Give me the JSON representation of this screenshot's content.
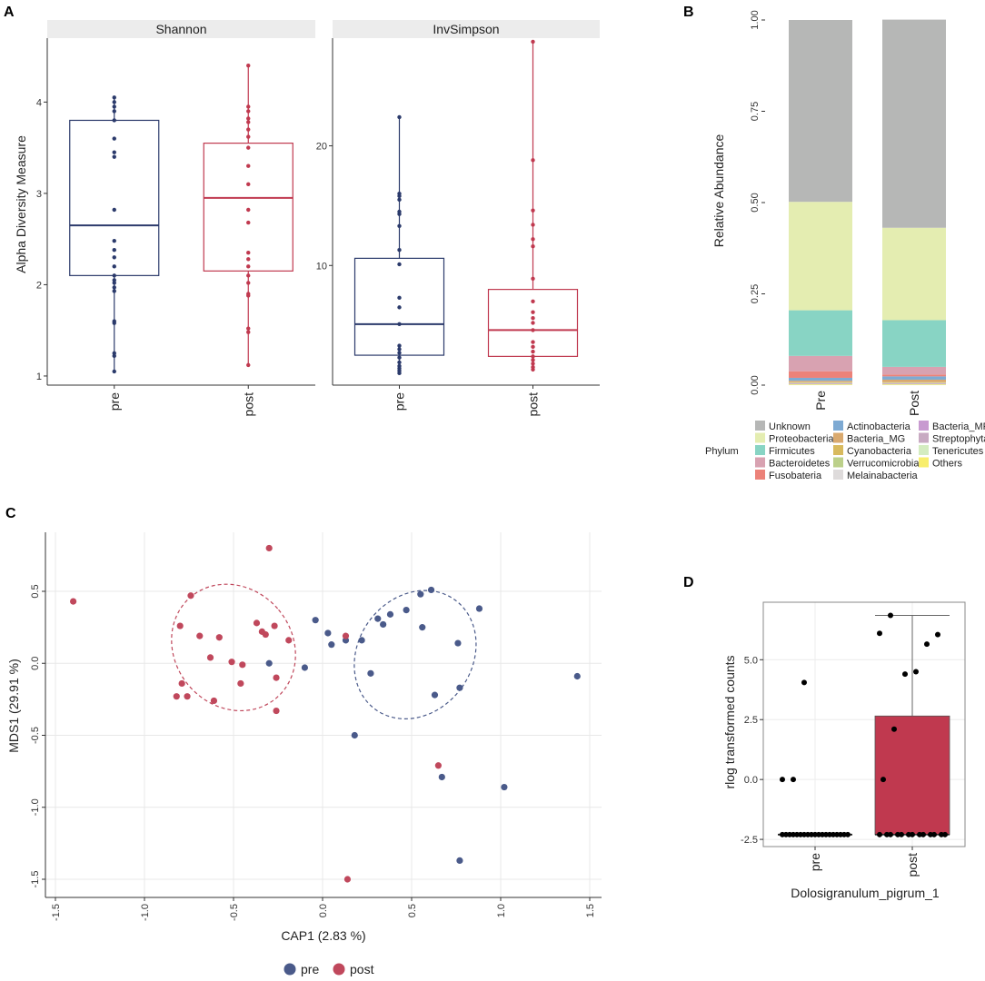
{
  "colors": {
    "pre": "#2b3a6b",
    "post": "#c0394f",
    "pre_point": "#4a5a8a",
    "post_point": "#c0485c",
    "unknown": "#b6b7b6",
    "proteobacteria": "#e4edb1",
    "firmicutes": "#88d4c4",
    "bacteroidetes": "#d8a2b1",
    "fusobacteria": "#ec8279",
    "actinobacteria": "#7eaad3",
    "bacteria_mg": "#d9a96e",
    "cyanobacteria": "#d8ba5e",
    "verrucomicrobia": "#bcd08a",
    "melainabacteria": "#dedbdb",
    "bacteria_mf": "#c89ad0",
    "streptophyta": "#c8aac2",
    "tenericutes": "#d4ecc0",
    "others": "#f8ee6c"
  },
  "panel_letters": {
    "a": "A",
    "b": "B",
    "c": "C",
    "d": "D"
  },
  "chart_data": [
    {
      "panel": "A-left",
      "type": "box",
      "strip_title": "Shannon",
      "ylabel": "Alpha Diversity Measure",
      "xlabel": "",
      "ylim": [
        0.9,
        4.7
      ],
      "yticks": [
        1,
        2,
        3,
        4
      ],
      "categories": [
        "pre",
        "post"
      ],
      "boxes": [
        {
          "name": "pre",
          "q1": 2.1,
          "median": 2.65,
          "q3": 3.8,
          "lo": 1.05,
          "hi": 4.05,
          "points": [
            1.05,
            1.22,
            1.25,
            1.58,
            1.6,
            1.93,
            1.97,
            2.02,
            2.05,
            2.1,
            2.2,
            2.3,
            2.38,
            2.48,
            2.82,
            3.4,
            3.45,
            3.6,
            3.8,
            3.9,
            3.95,
            4.0,
            4.05
          ]
        },
        {
          "name": "post",
          "q1": 2.15,
          "median": 2.95,
          "q3": 3.55,
          "lo": 1.12,
          "hi": 4.4,
          "points": [
            1.12,
            1.48,
            1.52,
            1.88,
            1.9,
            2.02,
            2.1,
            2.2,
            2.28,
            2.35,
            2.68,
            2.82,
            3.1,
            3.3,
            3.5,
            3.62,
            3.7,
            3.78,
            3.82,
            3.9,
            3.95,
            4.4
          ]
        }
      ]
    },
    {
      "panel": "A-right",
      "type": "box",
      "strip_title": "InvSimpson",
      "ylabel": "",
      "xlabel": "",
      "ylim": [
        0,
        29
      ],
      "yticks": [
        10,
        20
      ],
      "categories": [
        "pre",
        "post"
      ],
      "boxes": [
        {
          "name": "pre",
          "q1": 2.5,
          "median": 5.1,
          "q3": 10.6,
          "lo": 1.0,
          "hi": 22.4,
          "points": [
            1.0,
            1.2,
            1.4,
            1.6,
            1.9,
            2.3,
            2.7,
            3.0,
            3.3,
            5.1,
            6.5,
            7.3,
            10.1,
            11.3,
            13.3,
            14.3,
            14.5,
            15.5,
            15.8,
            16.0,
            22.4
          ]
        },
        {
          "name": "post",
          "q1": 2.4,
          "median": 4.6,
          "q3": 8.0,
          "lo": 1.3,
          "hi": 28.7,
          "points": [
            1.3,
            1.5,
            1.8,
            2.1,
            2.4,
            2.8,
            3.2,
            3.6,
            4.6,
            5.2,
            5.6,
            6.1,
            7.0,
            8.9,
            11.6,
            12.2,
            13.4,
            14.6,
            18.8,
            28.7
          ]
        }
      ]
    },
    {
      "panel": "B",
      "type": "stacked-bar",
      "title": "",
      "ylabel": "Relative Abundance",
      "xlabel": "",
      "ylim": [
        0,
        1
      ],
      "yticks": [
        "0.00",
        "0.25",
        "0.50",
        "0.75",
        "1.00"
      ],
      "categories": [
        "Pre",
        "Post"
      ],
      "legend_title": "Phylum",
      "legend_position": "bottom",
      "legend": [
        "Unknown",
        "Proteobacteria",
        "Firmicutes",
        "Bacteroidetes",
        "Fusobateria",
        "Actinobacteria",
        "Bacteria_MG",
        "Cyanobacteria",
        "Verrucomicrobia",
        "Melainabacteria",
        "Bacteria_MF",
        "Streptophyta",
        "Tenericutes",
        "Others"
      ],
      "series": [
        {
          "name": "Others",
          "color_key": "others",
          "values": [
            0.002,
            0.002
          ]
        },
        {
          "name": "Tenericutes",
          "color_key": "tenericutes",
          "values": [
            0.001,
            0.001
          ]
        },
        {
          "name": "Streptophyta",
          "color_key": "streptophyta",
          "values": [
            0.001,
            0.001
          ]
        },
        {
          "name": "Bacteria_MF",
          "color_key": "bacteria_mf",
          "values": [
            0.001,
            0.001
          ]
        },
        {
          "name": "Melainabacteria",
          "color_key": "melainabacteria",
          "values": [
            0.001,
            0.001
          ]
        },
        {
          "name": "Verrucomicrobia",
          "color_key": "verrucomicrobia",
          "values": [
            0.001,
            0.001
          ]
        },
        {
          "name": "Cyanobacteria",
          "color_key": "cyanobacteria",
          "values": [
            0.001,
            0.001
          ]
        },
        {
          "name": "Bacteria_MG",
          "color_key": "bacteria_mg",
          "values": [
            0.004,
            0.007
          ]
        },
        {
          "name": "Actinobacteria",
          "color_key": "actinobacteria",
          "values": [
            0.008,
            0.009
          ]
        },
        {
          "name": "Fusobateria",
          "color_key": "fusobacteria",
          "values": [
            0.018,
            0.005
          ]
        },
        {
          "name": "Bacteroidetes",
          "color_key": "bacteroidetes",
          "values": [
            0.042,
            0.021
          ]
        },
        {
          "name": "Firmicutes",
          "color_key": "firmicutes",
          "values": [
            0.125,
            0.128
          ]
        },
        {
          "name": "Proteobacteria",
          "color_key": "proteobacteria",
          "values": [
            0.297,
            0.253
          ]
        },
        {
          "name": "Unknown",
          "color_key": "unknown",
          "values": [
            0.498,
            0.57
          ]
        }
      ]
    },
    {
      "panel": "C",
      "type": "scatter",
      "title": "",
      "xlabel": "CAP1 (2.83 %)",
      "ylabel": "MDS1 (29.91 %)",
      "xlim": [
        -1.55,
        1.55
      ],
      "ylim": [
        -1.6,
        0.9
      ],
      "xticks": [
        "-1.5",
        "-1.0",
        "-0.5",
        "0.0",
        "0.5",
        "1.0",
        "1.5"
      ],
      "yticks": [
        "-1.5",
        "-1.0",
        "-0.5",
        "0.0",
        "0.5"
      ],
      "legend": [
        "pre",
        "post"
      ],
      "legend_position": "bottom",
      "series": [
        {
          "name": "pre",
          "color_key": "pre_point",
          "points": [
            [
              -0.3,
              0.0
            ],
            [
              -0.1,
              -0.03
            ],
            [
              -0.04,
              0.3
            ],
            [
              0.03,
              0.21
            ],
            [
              0.05,
              0.13
            ],
            [
              0.13,
              0.16
            ],
            [
              0.18,
              -0.5
            ],
            [
              0.22,
              0.16
            ],
            [
              0.27,
              -0.07
            ],
            [
              0.31,
              0.31
            ],
            [
              0.34,
              0.27
            ],
            [
              0.38,
              0.34
            ],
            [
              0.47,
              0.37
            ],
            [
              0.55,
              0.48
            ],
            [
              0.56,
              0.25
            ],
            [
              0.61,
              0.51
            ],
            [
              0.63,
              -0.22
            ],
            [
              0.67,
              -0.79
            ],
            [
              0.76,
              0.14
            ],
            [
              0.77,
              -0.17
            ],
            [
              0.77,
              -1.37
            ],
            [
              0.88,
              0.38
            ],
            [
              1.02,
              -0.86
            ],
            [
              1.43,
              -0.09
            ]
          ]
        },
        {
          "name": "post",
          "color_key": "post_point",
          "points": [
            [
              -1.4,
              0.43
            ],
            [
              -0.82,
              -0.23
            ],
            [
              -0.8,
              0.26
            ],
            [
              -0.79,
              -0.14
            ],
            [
              -0.76,
              -0.23
            ],
            [
              -0.74,
              0.47
            ],
            [
              -0.69,
              0.19
            ],
            [
              -0.63,
              0.04
            ],
            [
              -0.61,
              -0.26
            ],
            [
              -0.58,
              0.18
            ],
            [
              -0.51,
              0.01
            ],
            [
              -0.46,
              -0.14
            ],
            [
              -0.45,
              -0.01
            ],
            [
              -0.37,
              0.28
            ],
            [
              -0.34,
              0.22
            ],
            [
              -0.32,
              0.2
            ],
            [
              -0.3,
              0.8
            ],
            [
              -0.27,
              0.26
            ],
            [
              -0.26,
              -0.1
            ],
            [
              -0.26,
              -0.33
            ],
            [
              -0.19,
              0.16
            ],
            [
              0.13,
              0.19
            ],
            [
              0.14,
              -1.5
            ],
            [
              0.65,
              -0.71
            ]
          ]
        }
      ],
      "ellipses": [
        {
          "group": "post",
          "cx": -0.5,
          "cy": 0.11,
          "rx": 0.33,
          "ry": 0.46,
          "angle_deg": -40
        },
        {
          "group": "pre",
          "cx": 0.52,
          "cy": 0.06,
          "rx": 0.32,
          "ry": 0.47,
          "angle_deg": 36
        }
      ]
    },
    {
      "panel": "D",
      "type": "box",
      "title": "",
      "xlabel": "Dolosigranulum_pigrum_1",
      "ylabel": "rlog transformed counts",
      "ylim": [
        -2.8,
        7.4
      ],
      "yticks": [
        "-2.5",
        "0.0",
        "2.5",
        "5.0"
      ],
      "categories": [
        "pre",
        "post"
      ],
      "boxes": [
        {
          "name": "pre",
          "q1": -2.3,
          "median": -2.3,
          "q3": -2.3,
          "lo": -2.3,
          "hi": -2.3,
          "points": [
            -2.3,
            -2.3,
            -2.3,
            -2.3,
            -2.3,
            -2.3,
            -2.3,
            -2.3,
            -2.3,
            -2.3,
            -2.3,
            -2.3,
            -2.3,
            -2.3,
            -2.3,
            -2.3,
            -2.3,
            -2.3,
            -2.3,
            0.0,
            0.0,
            4.05
          ]
        },
        {
          "name": "post",
          "q1": -2.3,
          "median": -2.3,
          "q3": 2.65,
          "lo": -2.3,
          "hi": 6.85,
          "points": [
            -2.3,
            -2.3,
            -2.3,
            -2.3,
            -2.3,
            -2.3,
            -2.3,
            -2.3,
            -2.3,
            -2.3,
            -2.3,
            -2.3,
            -2.3,
            0.0,
            2.1,
            4.4,
            4.5,
            5.65,
            6.05,
            6.1,
            6.85
          ]
        }
      ]
    }
  ]
}
